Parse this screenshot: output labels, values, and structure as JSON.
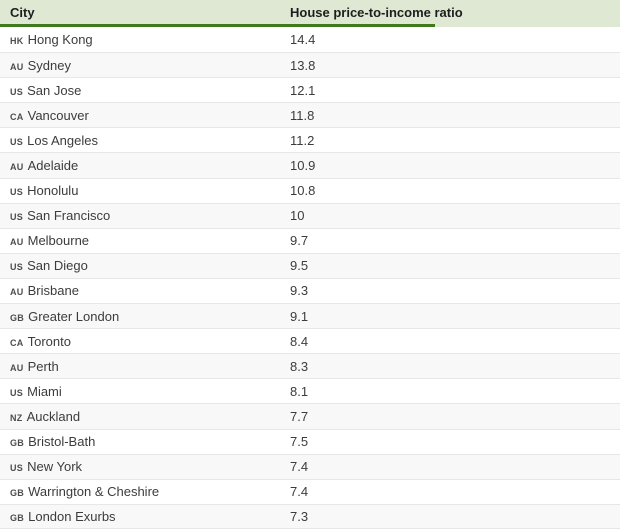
{
  "table": {
    "columns": [
      {
        "label": "City"
      },
      {
        "label": "House price-to-income ratio"
      }
    ],
    "rows": [
      {
        "code": "HK",
        "city": "Hong Kong",
        "ratio": "14.4"
      },
      {
        "code": "AU",
        "city": "Sydney",
        "ratio": "13.8"
      },
      {
        "code": "US",
        "city": "San Jose",
        "ratio": "12.1"
      },
      {
        "code": "CA",
        "city": "Vancouver",
        "ratio": "11.8"
      },
      {
        "code": "US",
        "city": "Los Angeles",
        "ratio": "11.2"
      },
      {
        "code": "AU",
        "city": "Adelaide",
        "ratio": "10.9"
      },
      {
        "code": "US",
        "city": "Honolulu",
        "ratio": "10.8"
      },
      {
        "code": "US",
        "city": "San Francisco",
        "ratio": "10"
      },
      {
        "code": "AU",
        "city": "Melbourne",
        "ratio": "9.7"
      },
      {
        "code": "US",
        "city": "San Diego",
        "ratio": "9.5"
      },
      {
        "code": "AU",
        "city": "Brisbane",
        "ratio": "9.3"
      },
      {
        "code": "GB",
        "city": "Greater London",
        "ratio": "9.1"
      },
      {
        "code": "CA",
        "city": "Toronto",
        "ratio": "8.4"
      },
      {
        "code": "AU",
        "city": "Perth",
        "ratio": "8.3"
      },
      {
        "code": "US",
        "city": "Miami",
        "ratio": "8.1"
      },
      {
        "code": "NZ",
        "city": "Auckland",
        "ratio": "7.7"
      },
      {
        "code": "GB",
        "city": "Bristol-Bath",
        "ratio": "7.5"
      },
      {
        "code": "US",
        "city": "New York",
        "ratio": "7.4"
      },
      {
        "code": "GB",
        "city": "Warrington & Cheshire",
        "ratio": "7.4"
      },
      {
        "code": "GB",
        "city": "London Exurbs",
        "ratio": "7.3"
      }
    ]
  },
  "chart_data": {
    "type": "table",
    "columns": [
      "City",
      "House price-to-income ratio"
    ],
    "rows": [
      [
        "HK Hong Kong",
        14.4
      ],
      [
        "AU Sydney",
        13.8
      ],
      [
        "US San Jose",
        12.1
      ],
      [
        "CA Vancouver",
        11.8
      ],
      [
        "US Los Angeles",
        11.2
      ],
      [
        "AU Adelaide",
        10.9
      ],
      [
        "US Honolulu",
        10.8
      ],
      [
        "US San Francisco",
        10
      ],
      [
        "AU Melbourne",
        9.7
      ],
      [
        "US San Diego",
        9.5
      ],
      [
        "AU Brisbane",
        9.3
      ],
      [
        "GB Greater London",
        9.1
      ],
      [
        "CA Toronto",
        8.4
      ],
      [
        "AU Perth",
        8.3
      ],
      [
        "US Miami",
        8.1
      ],
      [
        "NZ Auckland",
        7.7
      ],
      [
        "GB Bristol-Bath",
        7.5
      ],
      [
        "US New York",
        7.4
      ],
      [
        "GB Warrington & Cheshire",
        7.4
      ],
      [
        "GB London Exurbs",
        7.3
      ]
    ]
  },
  "colors": {
    "header_background": "#dfe8d3",
    "header_accent_line": "#3f7a1e",
    "row_background": "#ffffff",
    "row_alt_background": "#f8f8f8",
    "row_divider": "#e7e7e7",
    "text": "#3c3c3c"
  }
}
